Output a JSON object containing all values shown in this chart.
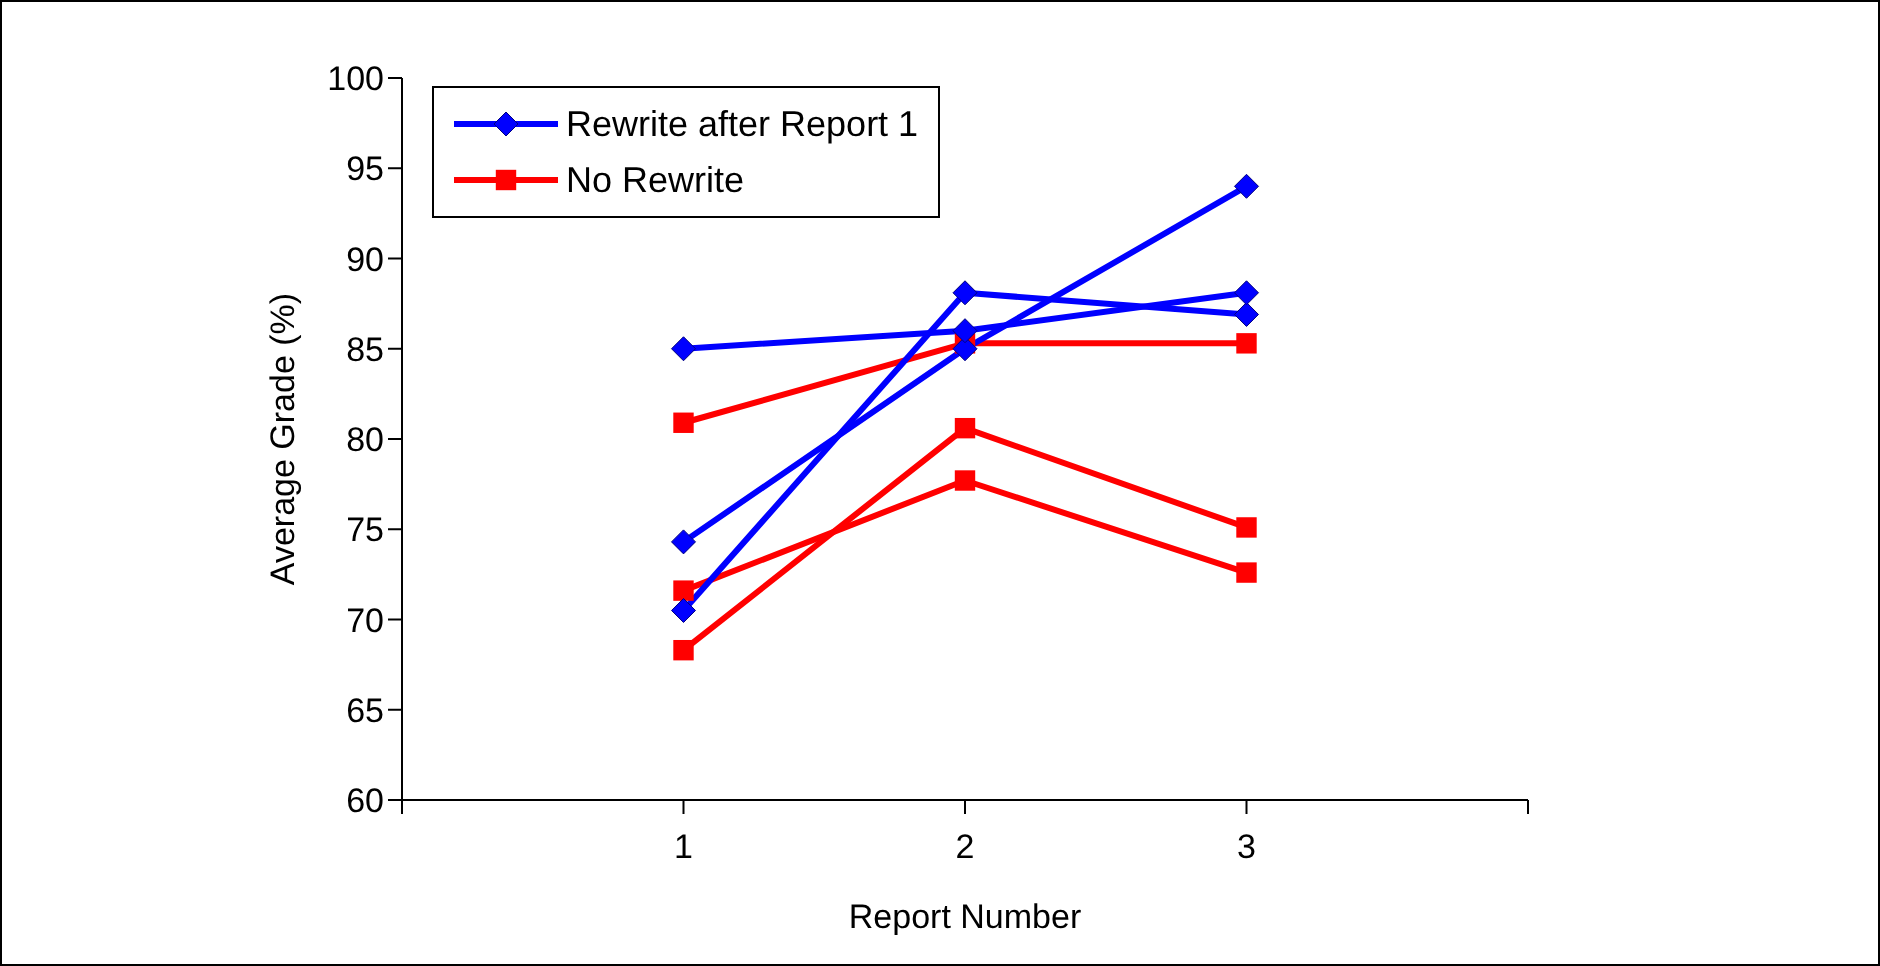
{
  "chart_data": {
    "type": "line",
    "xlabel": "Report Number",
    "ylabel": "Average Grade (%)",
    "x": [
      1,
      2,
      3
    ],
    "series": [
      {
        "name": "Rewrite after Report 1",
        "color": "#0000ff",
        "marker": "diamond",
        "values": [
          85.0,
          86.0,
          88.1
        ]
      },
      {
        "color": "#0000ff",
        "marker": "diamond",
        "values": [
          74.3,
          85.0,
          94.0
        ]
      },
      {
        "color": "#0000ff",
        "marker": "diamond",
        "values": [
          70.5,
          88.1,
          86.9
        ]
      },
      {
        "name": "No Rewrite",
        "color": "#ff0000",
        "marker": "square",
        "values": [
          80.9,
          85.3,
          85.3
        ]
      },
      {
        "color": "#ff0000",
        "marker": "square",
        "values": [
          71.6,
          77.7,
          72.6
        ]
      },
      {
        "color": "#ff0000",
        "marker": "square",
        "values": [
          68.3,
          80.6,
          75.1
        ]
      }
    ],
    "xlim": [
      0,
      4
    ],
    "xticks": [
      {
        "value": 0,
        "label": null
      },
      1,
      2,
      3,
      {
        "value": 4,
        "label": null
      }
    ],
    "ylim": [
      60,
      100
    ],
    "yticks": [
      60,
      65,
      70,
      75,
      80,
      85,
      90,
      95,
      100
    ],
    "grid": false,
    "legend": "top left"
  }
}
